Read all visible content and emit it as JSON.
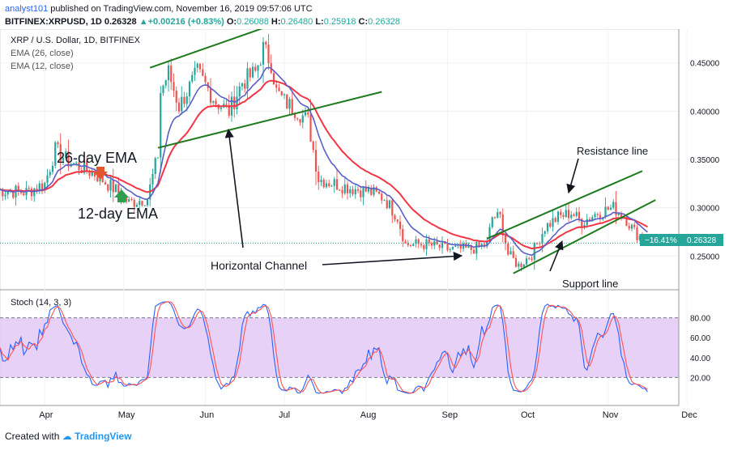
{
  "header": {
    "author": "analyst101",
    "published": "published on TradingView.com, November 16, 2019 09:57:06 UTC",
    "symbol": "BITFINEX:XRPUSD, 1D",
    "last": "0.26328",
    "change": "+0.00216 (+0.83%)",
    "open_label": "O:",
    "open": "0.26088",
    "high_label": "H:",
    "high": "0.26480",
    "low_label": "L:",
    "low": "0.25918",
    "close_label": "C:",
    "close": "0.26328"
  },
  "legend": {
    "title": "XRP / U.S. Dollar, 1D, BITFINEX",
    "ema26": "EMA (26, close)",
    "ema12": "EMA (12, close)"
  },
  "annotations": {
    "ema26": "26-day EMA",
    "ema12": "12-day EMA",
    "horizontal": "Horizontal Channel",
    "resistance": "Resistance line",
    "support": "Support line"
  },
  "price_badge": {
    "pct": "−16.41%",
    "price": "0.26328"
  },
  "stoch_label": "Stoch (14, 3, 3)",
  "footer": {
    "created_with": "Created with",
    "brand": "TradingView"
  },
  "colors": {
    "up": "#26a69a",
    "down": "#ef5350",
    "ema26": "#f23645",
    "ema12": "#5b5fc7",
    "trend": "#1e7a1e",
    "stoch_k": "#2962ff",
    "stoch_d": "#ff5252",
    "stoch_band": "#e1c5f5"
  },
  "chart_data": {
    "type": "candlestick",
    "title": "XRP / U.S. Dollar, 1D, BITFINEX",
    "x_ticks": [
      "Apr",
      "May",
      "Jun",
      "Jul",
      "Aug",
      "Sep",
      "Oct",
      "Nov",
      "Dec"
    ],
    "y_ticks": [
      "0.45000",
      "0.40000",
      "0.35000",
      "0.30000",
      "0.25000"
    ],
    "ylim": [
      0.215,
      0.485
    ],
    "last_price": 0.26328,
    "anchors": [
      [
        "03-15",
        0.318
      ],
      [
        "03-25",
        0.316
      ],
      [
        "04-01",
        0.325
      ],
      [
        "04-05",
        0.36
      ],
      [
        "04-10",
        0.348
      ],
      [
        "04-20",
        0.335
      ],
      [
        "04-28",
        0.318
      ],
      [
        "05-03",
        0.305
      ],
      [
        "05-10",
        0.31
      ],
      [
        "05-14",
        0.355
      ],
      [
        "05-15",
        0.42
      ],
      [
        "05-18",
        0.44
      ],
      [
        "05-22",
        0.405
      ],
      [
        "05-29",
        0.44
      ],
      [
        "06-05",
        0.41
      ],
      [
        "06-10",
        0.4
      ],
      [
        "06-15",
        0.43
      ],
      [
        "06-20",
        0.44
      ],
      [
        "06-23",
        0.465
      ],
      [
        "06-26",
        0.45
      ],
      [
        "06-28",
        0.42
      ],
      [
        "07-01",
        0.41
      ],
      [
        "07-06",
        0.4
      ],
      [
        "07-10",
        0.39
      ],
      [
        "07-14",
        0.33
      ],
      [
        "07-20",
        0.325
      ],
      [
        "07-27",
        0.32
      ],
      [
        "08-02",
        0.317
      ],
      [
        "08-08",
        0.31
      ],
      [
        "08-13",
        0.29
      ],
      [
        "08-16",
        0.262
      ],
      [
        "08-24",
        0.262
      ],
      [
        "09-01",
        0.257
      ],
      [
        "09-10",
        0.257
      ],
      [
        "09-16",
        0.262
      ],
      [
        "09-18",
        0.29
      ],
      [
        "09-21",
        0.29
      ],
      [
        "09-24",
        0.252
      ],
      [
        "09-28",
        0.24
      ],
      [
        "10-03",
        0.252
      ],
      [
        "10-08",
        0.28
      ],
      [
        "10-13",
        0.29
      ],
      [
        "10-18",
        0.295
      ],
      [
        "10-22",
        0.285
      ],
      [
        "10-28",
        0.295
      ],
      [
        "11-03",
        0.3
      ],
      [
        "11-07",
        0.292
      ],
      [
        "11-11",
        0.275
      ],
      [
        "11-16",
        0.2633
      ]
    ],
    "ema26_last": 0.281,
    "ema12_last": 0.272,
    "stochastic": {
      "name": "Stoch (14, 3, 3)",
      "y_ticks": [
        "80.00",
        "60.00",
        "40.00",
        "20.00"
      ],
      "band": [
        20,
        80
      ],
      "ylim": [
        0,
        100
      ]
    }
  }
}
